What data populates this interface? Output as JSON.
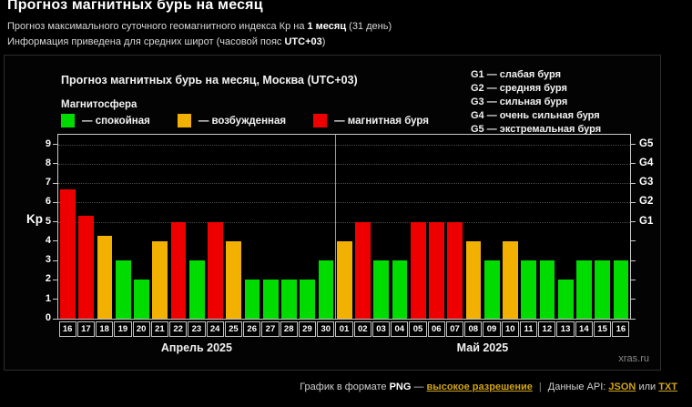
{
  "header": {
    "title": "Прогноз магнитных бурь на месяц",
    "line1": {
      "pre": "Прогноз максимального суточного геомагнитного индекса Кр на ",
      "bold": "1 месяц",
      "post": " (31 день)"
    },
    "line2": {
      "pre": "Информация приведена для средних широт (часовой пояс ",
      "bold": "UTC+03",
      "post": ")"
    }
  },
  "chart": {
    "title": "Прогноз магнитных бурь на месяц, Москва (UTC+03)",
    "magnetosphere_label": "Магнитосфера",
    "legend_items": [
      {
        "key": "quiet",
        "label": "— спокойная"
      },
      {
        "key": "excited",
        "label": "— возбужденная"
      },
      {
        "key": "storm",
        "label": "— магнитная буря"
      }
    ],
    "g_legend": [
      "G1 — слабая буря",
      "G2 — средняя буря",
      "G3 — сильная буря",
      "G4 — очень сильная буря",
      "G5 — экстремальная буря"
    ],
    "watermark": "xras.ru"
  },
  "chart_data": {
    "type": "bar",
    "title": "Прогноз магнитных бурь на месяц, Москва (UTC+03)",
    "xlabel": "",
    "ylabel": "Kp",
    "ylim": [
      0,
      9.5
    ],
    "grid": "dotted horizontal lines at Kp 5-9 (G1-G5 levels), vertical divider between months",
    "categories": [
      "16",
      "17",
      "18",
      "19",
      "20",
      "21",
      "22",
      "23",
      "24",
      "25",
      "26",
      "27",
      "28",
      "29",
      "30",
      "01",
      "02",
      "03",
      "04",
      "05",
      "06",
      "07",
      "08",
      "09",
      "10",
      "11",
      "12",
      "13",
      "14",
      "15",
      "16"
    ],
    "values": [
      6.7,
      5.3,
      4.3,
      3,
      2,
      4,
      5,
      3,
      5,
      4,
      2,
      2,
      2,
      2,
      3,
      4,
      5,
      3,
      3,
      5,
      5,
      5,
      4,
      3,
      4,
      3,
      3,
      2,
      3,
      3,
      3
    ],
    "statuses": [
      "storm",
      "storm",
      "excited",
      "quiet",
      "quiet",
      "excited",
      "storm",
      "quiet",
      "storm",
      "excited",
      "quiet",
      "quiet",
      "quiet",
      "quiet",
      "quiet",
      "excited",
      "storm",
      "quiet",
      "quiet",
      "storm",
      "storm",
      "storm",
      "excited",
      "quiet",
      "excited",
      "quiet",
      "quiet",
      "quiet",
      "quiet",
      "quiet",
      "quiet"
    ],
    "status_colors": {
      "quiet": "#00dc00",
      "excited": "#f2b000",
      "storm": "#ee0000"
    },
    "y_ticks": [
      0,
      1,
      2,
      3,
      4,
      5,
      6,
      7,
      8,
      9
    ],
    "g_levels": [
      {
        "label": "G1",
        "kp": 5
      },
      {
        "label": "G2",
        "kp": 6
      },
      {
        "label": "G3",
        "kp": 7
      },
      {
        "label": "G4",
        "kp": 8
      },
      {
        "label": "G5",
        "kp": 9
      }
    ],
    "month_groups": [
      {
        "label": "Апрель 2025",
        "start": 0,
        "end": 14
      },
      {
        "label": "Май 2025",
        "start": 15,
        "end": 30
      }
    ],
    "month_split_index": 15
  },
  "footer": {
    "text1": "График в формате ",
    "png": "PNG",
    "dash": " — ",
    "link_hires": "высокое разрешение",
    "pipe": "|",
    "api_label": "Данные API:",
    "link_json": "JSON",
    "or_label": "или",
    "link_txt": "TXT"
  }
}
